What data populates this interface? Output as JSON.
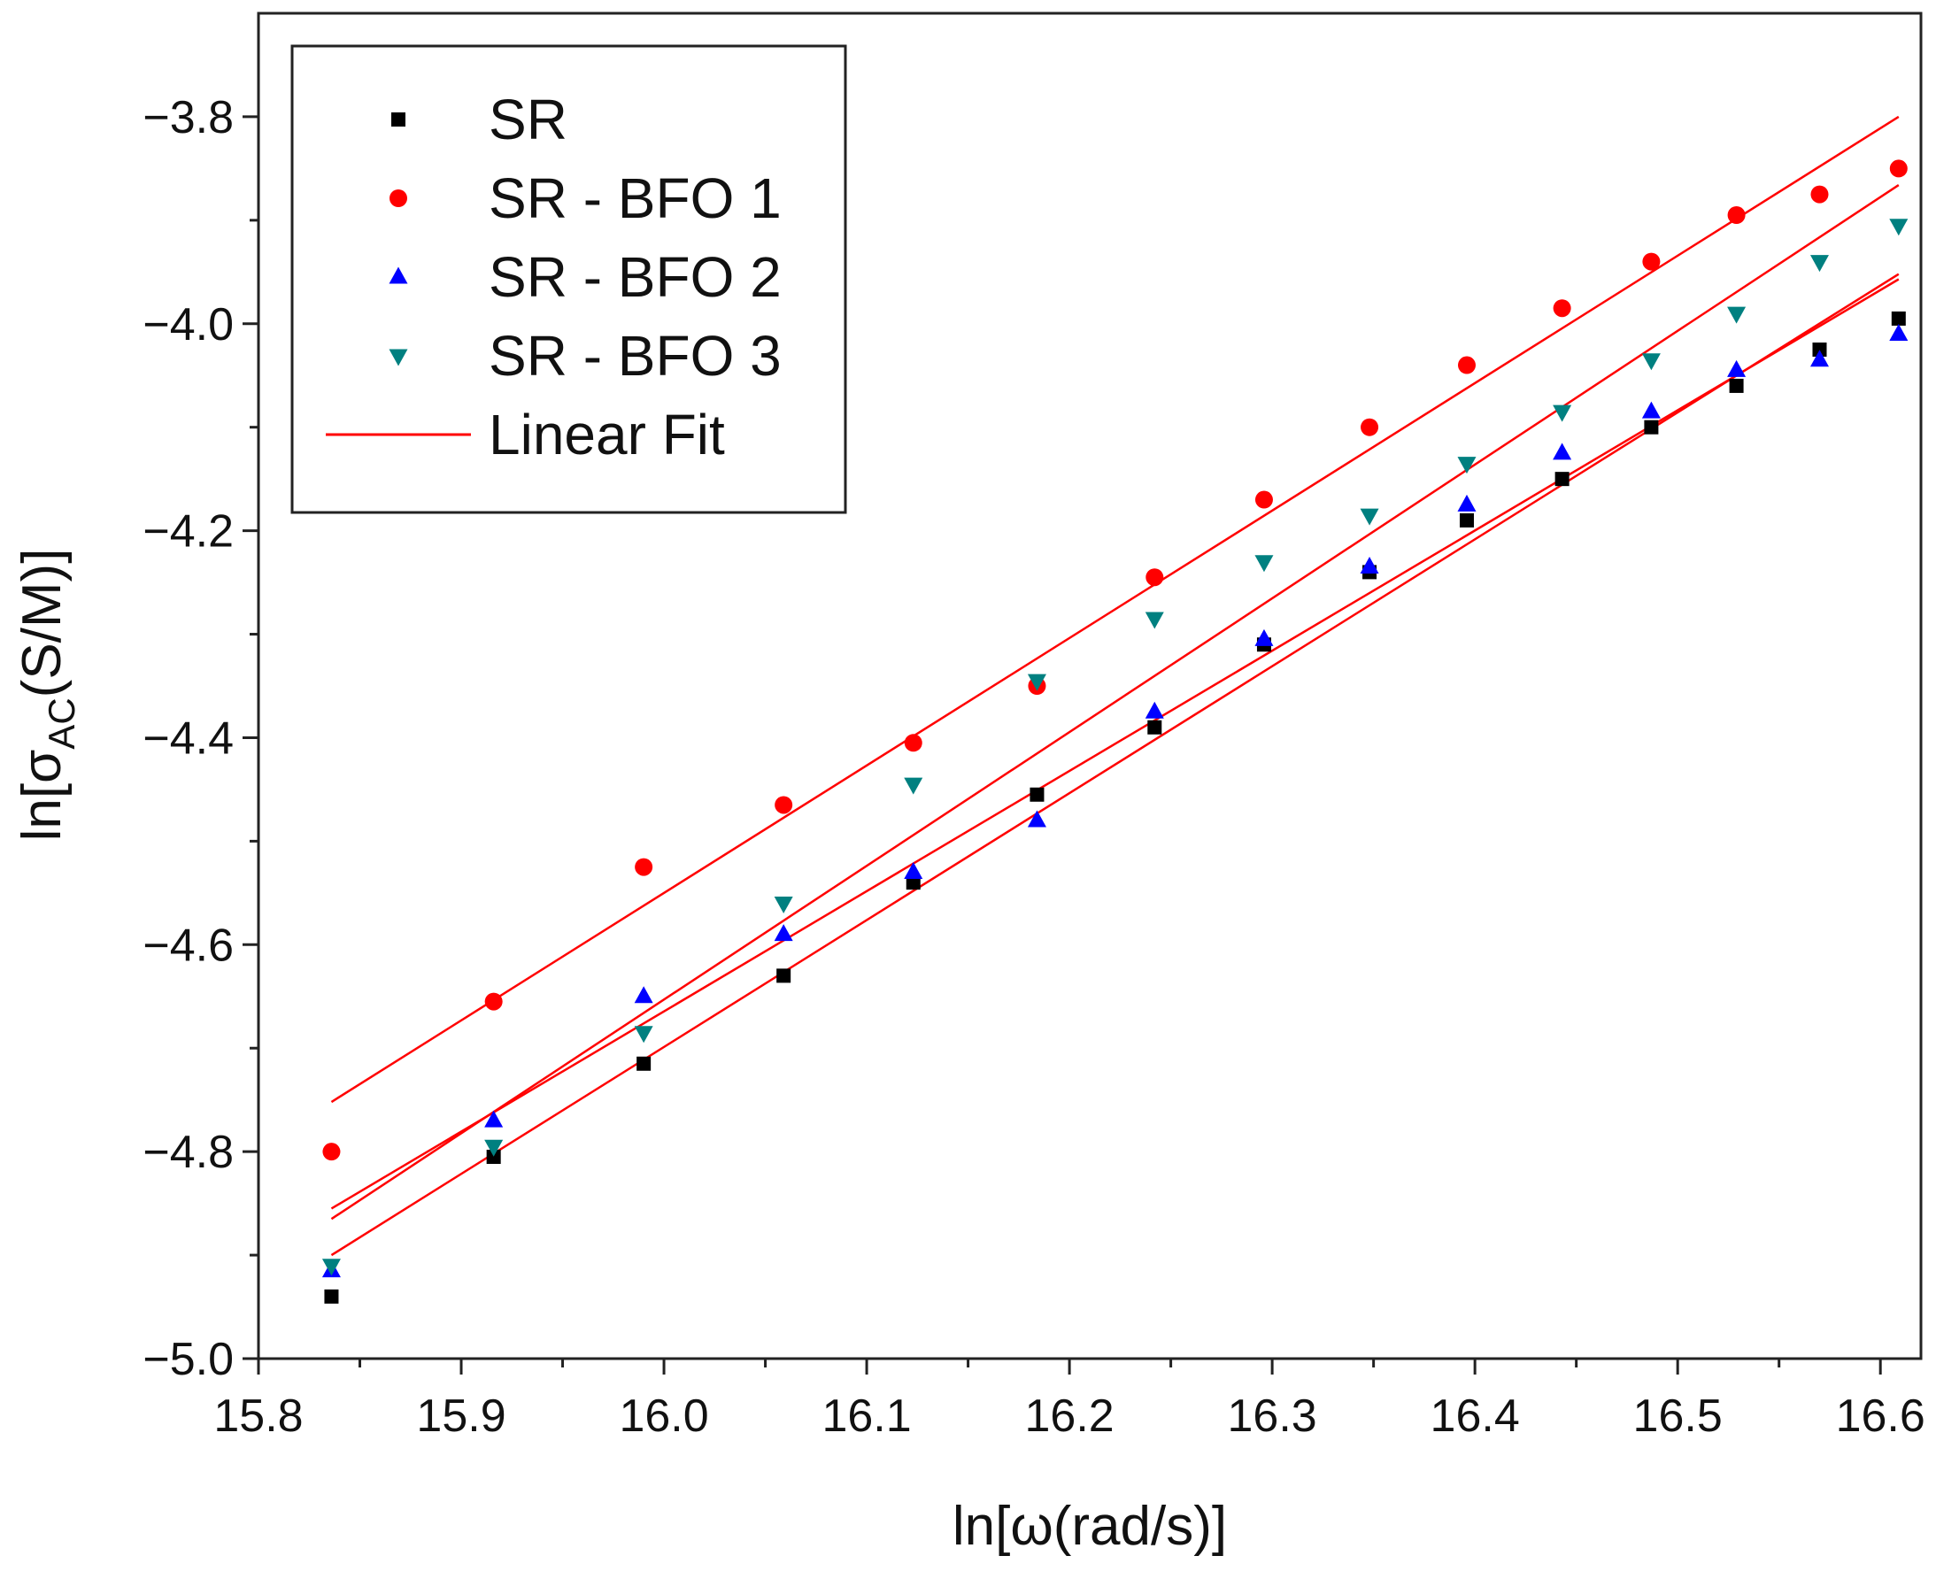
{
  "chart_data": {
    "type": "scatter",
    "title": "",
    "xlabel": "ln[ω(rad/s)]",
    "ylabel": {
      "prefix": "ln[σ",
      "subscript": "AC",
      "suffix": "(S/M)]"
    },
    "xlim": [
      15.8,
      16.62
    ],
    "ylim": [
      -5.0,
      -3.7
    ],
    "xticks": [
      15.8,
      15.9,
      16.0,
      16.1,
      16.2,
      16.3,
      16.4,
      16.5,
      16.6
    ],
    "xtick_labels": [
      "15.8",
      "15.9",
      "16.0",
      "16.1",
      "16.2",
      "16.3",
      "16.4",
      "16.5",
      "16.6"
    ],
    "yticks": [
      -5.0,
      -4.8,
      -4.6,
      -4.4,
      -4.2,
      -4.0,
      -3.8
    ],
    "ytick_labels": [
      "−5.0",
      "−4.8",
      "−4.6",
      "−4.4",
      "−4.2",
      "−4.0",
      "−3.8"
    ],
    "legend_position": "top-left",
    "x": [
      15.836,
      15.916,
      15.99,
      16.059,
      16.123,
      16.184,
      16.242,
      16.296,
      16.348,
      16.396,
      16.443,
      16.487,
      16.529,
      16.57,
      16.609
    ],
    "series": [
      {
        "name": "SR",
        "marker": "square",
        "color": "#000000",
        "values": [
          -4.94,
          -4.805,
          -4.715,
          -4.63,
          -4.54,
          -4.455,
          -4.39,
          -4.31,
          -4.24,
          -4.19,
          -4.15,
          -4.1,
          -4.06,
          -4.025,
          -3.995
        ]
      },
      {
        "name": "SR - BFO 1",
        "marker": "circle",
        "color": "#ff0000",
        "values": [
          -4.8,
          -4.655,
          -4.525,
          -4.465,
          -4.405,
          -4.35,
          -4.245,
          -4.17,
          -4.1,
          -4.04,
          -3.985,
          -3.94,
          -3.895,
          -3.875,
          -3.85
        ]
      },
      {
        "name": "SR - BFO 2",
        "marker": "triangle-up",
        "color": "#0000ff",
        "values": [
          -4.915,
          -4.77,
          -4.65,
          -4.59,
          -4.53,
          -4.48,
          -4.375,
          -4.305,
          -4.235,
          -4.175,
          -4.125,
          -4.085,
          -4.045,
          -4.035,
          -4.01
        ]
      },
      {
        "name": "SR - BFO 3",
        "marker": "triangle-down",
        "color": "#008080",
        "values": [
          -4.91,
          -4.795,
          -4.685,
          -4.56,
          -4.445,
          -4.345,
          -4.285,
          -4.23,
          -4.185,
          -4.135,
          -4.085,
          -4.035,
          -3.99,
          -3.94,
          -3.905
        ]
      }
    ],
    "fits": [
      {
        "name": "Linear Fit",
        "series": "SR",
        "color": "#ff0000",
        "x": [
          15.836,
          16.609
        ],
        "y": [
          -4.9,
          -3.952
        ]
      },
      {
        "name": "Linear Fit",
        "series": "SR - BFO 1",
        "color": "#ff0000",
        "x": [
          15.836,
          16.609
        ],
        "y": [
          -4.752,
          -3.8
        ]
      },
      {
        "name": "Linear Fit",
        "series": "SR - BFO 2",
        "color": "#ff0000",
        "x": [
          15.836,
          16.609
        ],
        "y": [
          -4.855,
          -3.957
        ]
      },
      {
        "name": "Linear Fit",
        "series": "SR - BFO 3",
        "color": "#ff0000",
        "x": [
          15.836,
          16.609
        ],
        "y": [
          -4.865,
          -3.866
        ]
      }
    ],
    "legend": [
      {
        "label": "SR",
        "marker": "square",
        "color": "#000000"
      },
      {
        "label": "SR - BFO 1",
        "marker": "circle",
        "color": "#ff0000"
      },
      {
        "label": "SR - BFO 2",
        "marker": "triangle-up",
        "color": "#0000ff"
      },
      {
        "label": "SR - BFO 3",
        "marker": "triangle-down",
        "color": "#008080"
      },
      {
        "label": "Linear Fit",
        "marker": "line",
        "color": "#ff0000"
      }
    ]
  }
}
